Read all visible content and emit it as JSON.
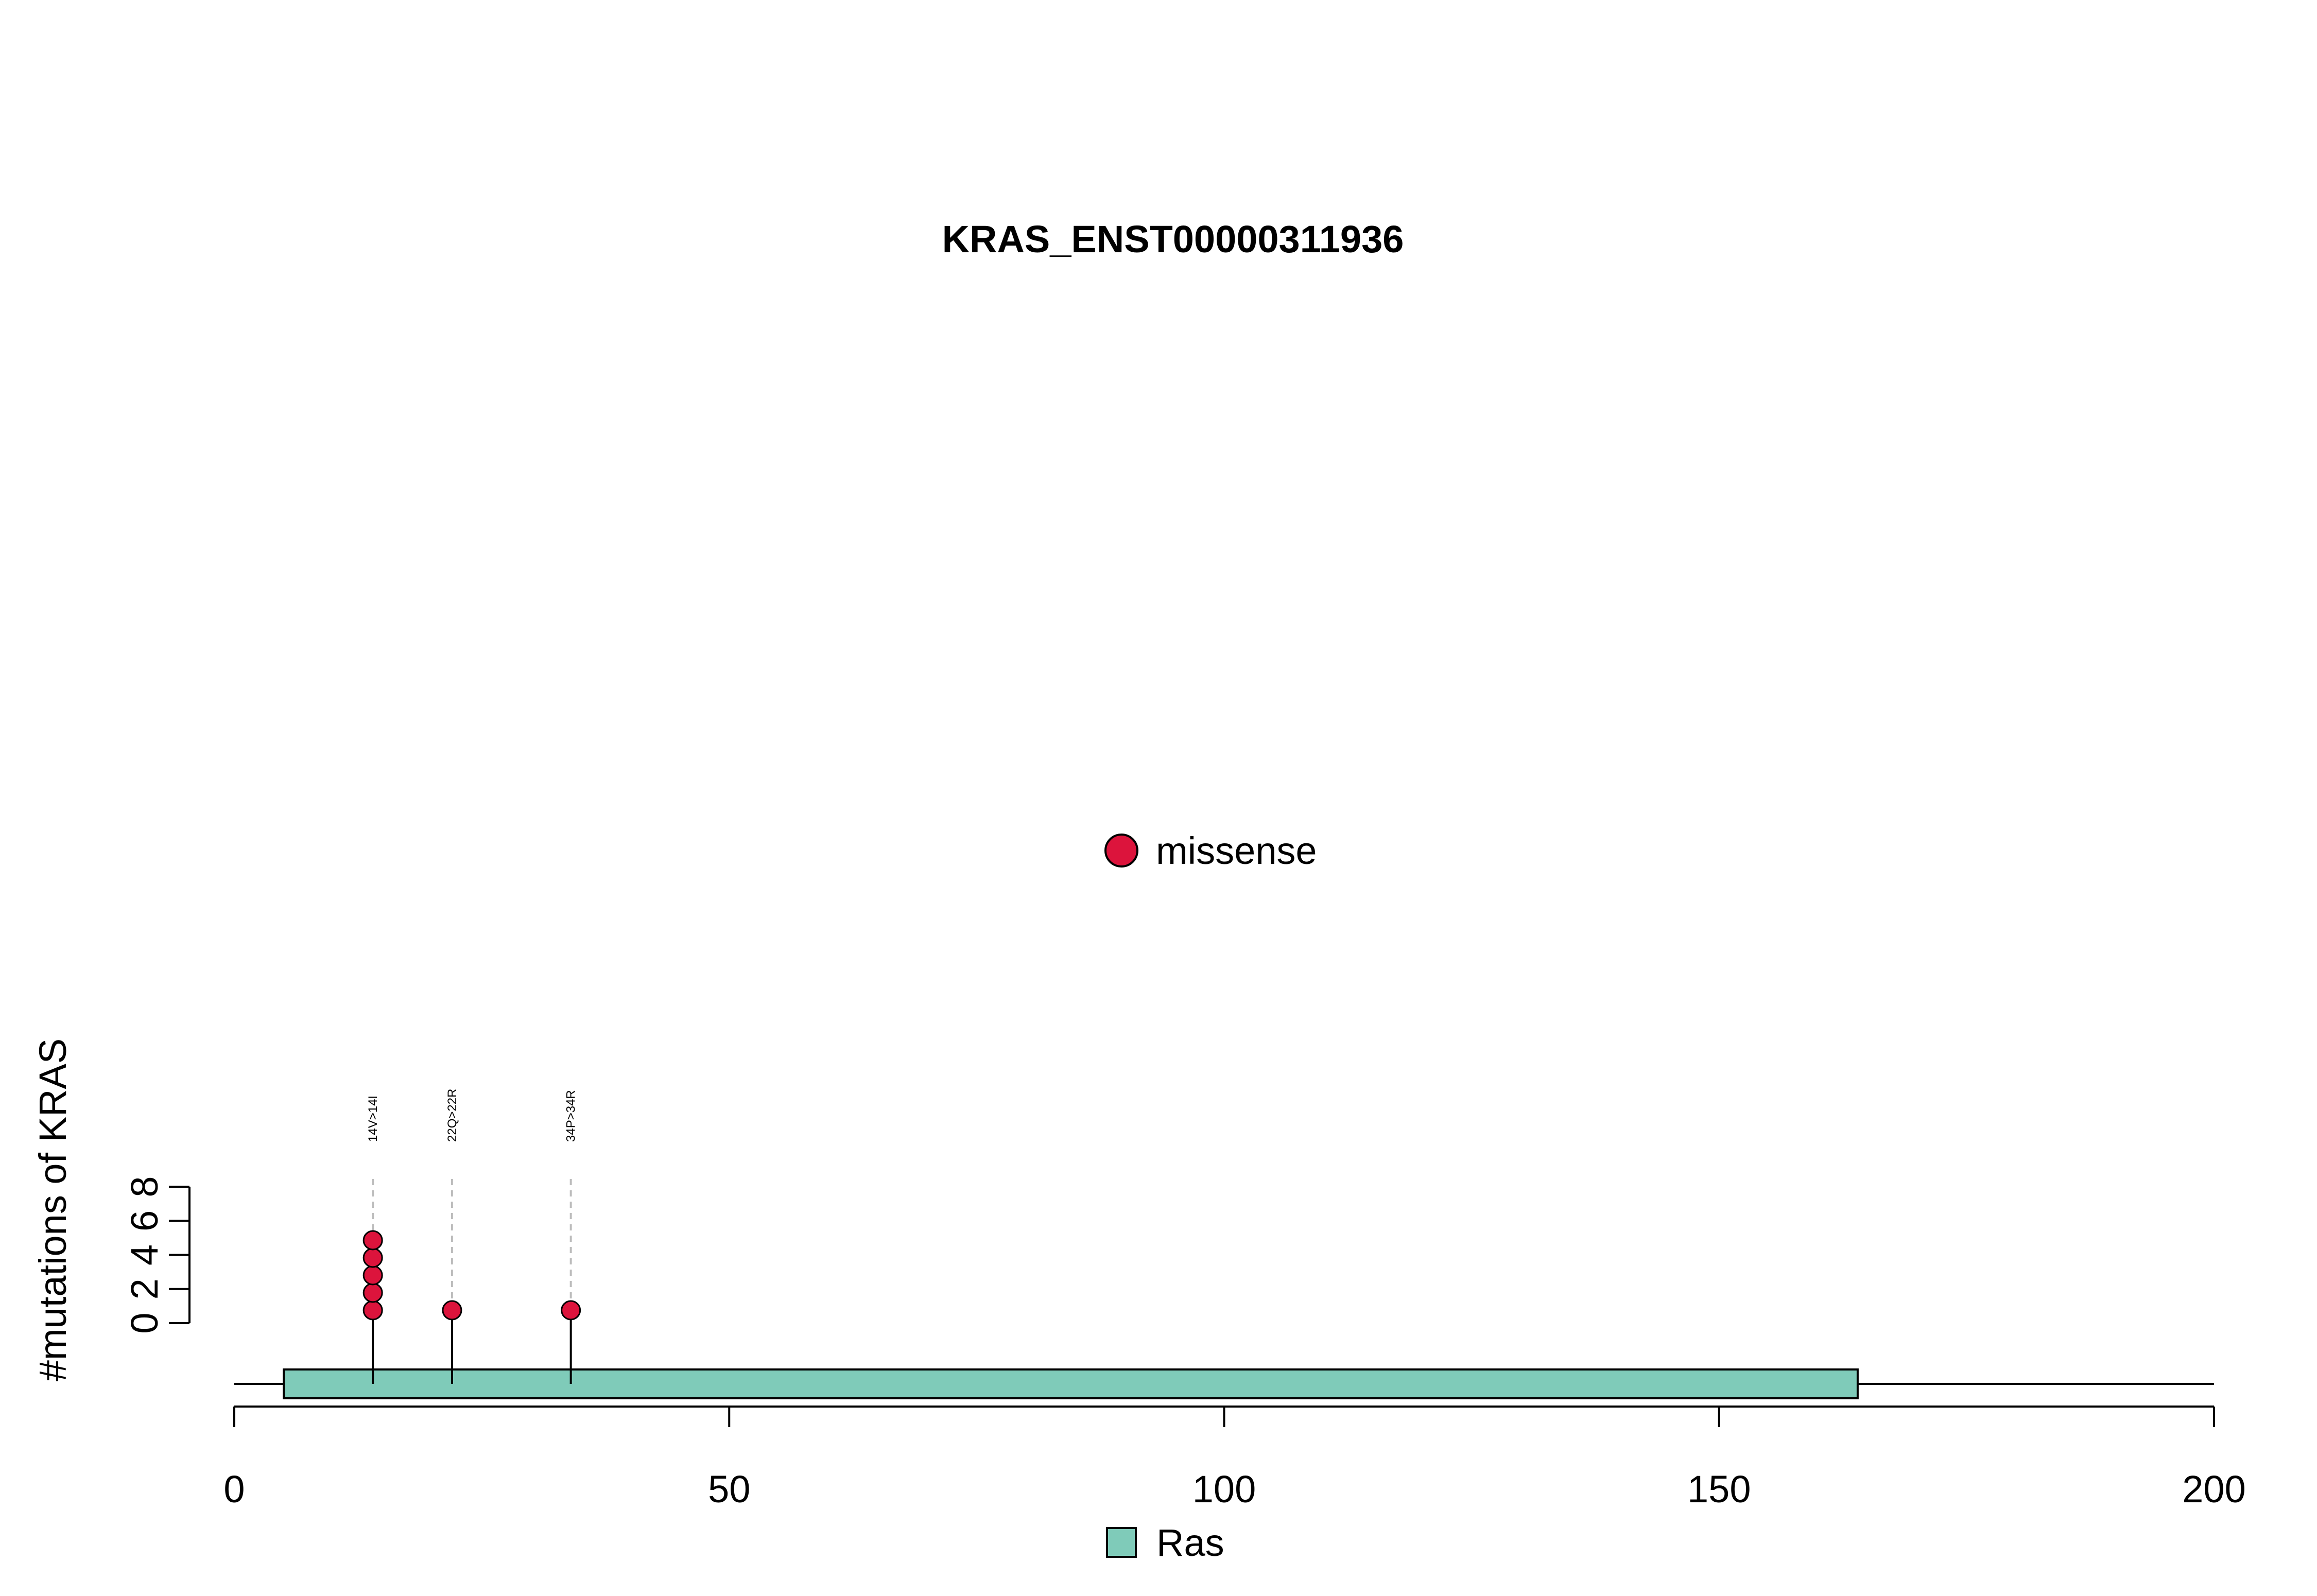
{
  "chart_data": {
    "type": "scatter",
    "title": "KRAS_ENST00000311936",
    "ylabel": "#mutations of KRAS",
    "xlabel": "",
    "xlim": [
      0,
      200
    ],
    "x_ticks": [
      "0",
      "50",
      "100",
      "150",
      "200"
    ],
    "ylim": [
      0,
      8
    ],
    "y_ticks": [
      "0",
      "2",
      "4",
      "6",
      "8"
    ],
    "protein_length": 200,
    "domains": [
      {
        "name": "Ras",
        "start": 5,
        "end": 164,
        "color": "#7fcbb9"
      }
    ],
    "mutation_legend": [
      {
        "label": "missense",
        "color": "#dc143c"
      }
    ],
    "mutations": [
      {
        "label": "14V>14I",
        "position": 14,
        "count": 5,
        "type": "missense"
      },
      {
        "label": "22Q>22R",
        "position": 22,
        "count": 1,
        "type": "missense"
      },
      {
        "label": "34P>34R",
        "position": 34,
        "count": 1,
        "type": "missense"
      }
    ],
    "grid": false
  }
}
